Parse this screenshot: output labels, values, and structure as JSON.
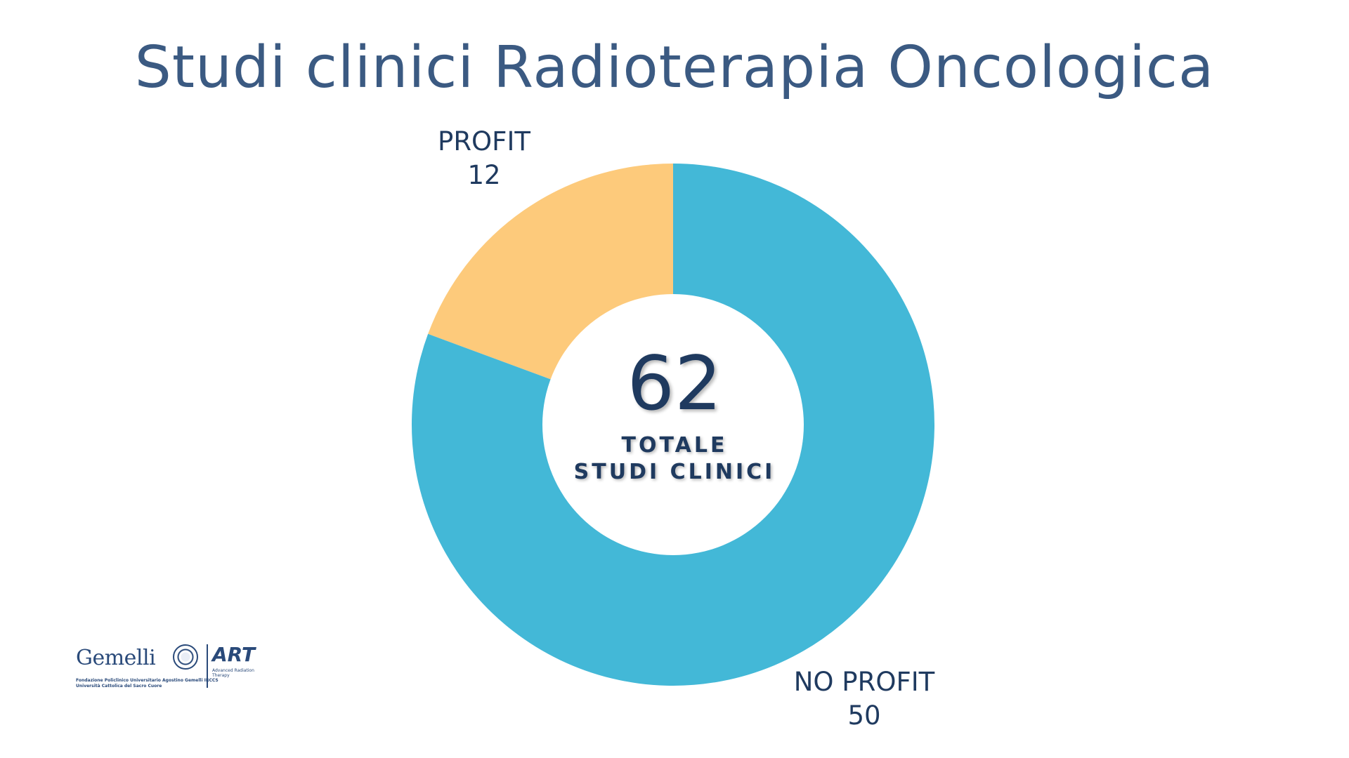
{
  "colors": {
    "title": "#3b5a82",
    "text": "#1f3a5f",
    "profit": "#fdca7b",
    "no_profit": "#43b8d7",
    "hole": "#ffffff",
    "logo": "#2a4a7a"
  },
  "chart_data": {
    "type": "pie",
    "title": "Studi clinici Radioterapia Oncologica",
    "categories": [
      "PROFIT",
      "NO PROFIT"
    ],
    "values": [
      12,
      50
    ],
    "value_labels": [
      "12",
      "50"
    ],
    "total": {
      "value": "62",
      "caption_line1": "TOTALE",
      "caption_line2": "STUDI CLINICI"
    },
    "donut": true,
    "legend": "none",
    "start_angle_deg": 0,
    "direction": "counterclockwise"
  },
  "logo": {
    "gemelli": "Gemelli",
    "gemelli_sub_line1": "Fondazione Policlinico Universitario Agostino Gemelli IRCCS",
    "gemelli_sub_line2": "Università Cattolica del Sacro Cuore",
    "art": "ART",
    "art_sub": "Advanced Radiation Therapy"
  }
}
